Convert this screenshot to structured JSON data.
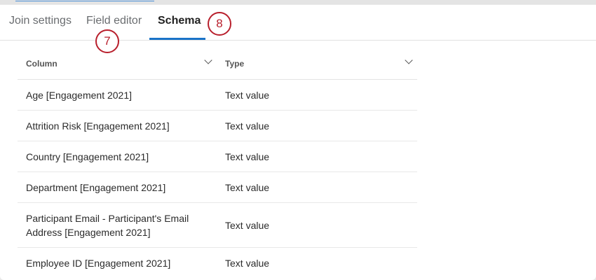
{
  "tabs": [
    {
      "label": "Join settings"
    },
    {
      "label": "Field editor"
    },
    {
      "label": "Schema",
      "active": true
    }
  ],
  "callouts": [
    "7",
    "8"
  ],
  "table": {
    "headers": [
      "Column",
      "Type"
    ],
    "rows": [
      {
        "column": "Age [Engagement 2021]",
        "type": "Text value"
      },
      {
        "column": "Attrition Risk [Engagement 2021]",
        "type": "Text value"
      },
      {
        "column": "Country [Engagement 2021]",
        "type": "Text value"
      },
      {
        "column": "Department [Engagement 2021]",
        "type": "Text value"
      },
      {
        "column": "Participant Email - Participant's Email Address [Engagement 2021]",
        "type": "Text value"
      },
      {
        "column": "Employee ID [Engagement 2021]",
        "type": "Text value"
      }
    ]
  },
  "colors": {
    "accent": "#1a73c8",
    "callout": "#b81f2c"
  }
}
